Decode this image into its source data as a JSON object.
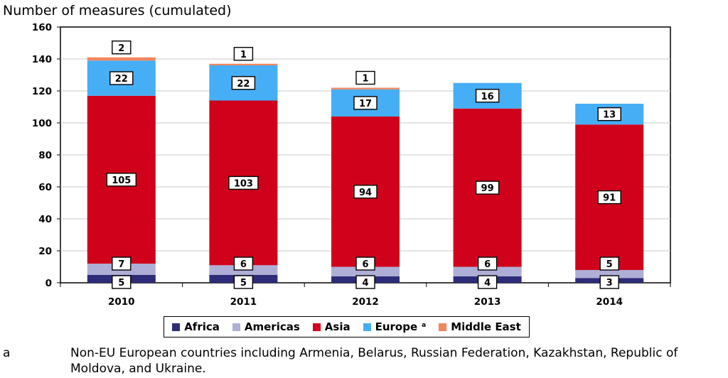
{
  "chart_data": {
    "type": "bar",
    "stacked": true,
    "ylabel": "Number of measures (cumulated)",
    "ylim": [
      0,
      160
    ],
    "yticks": [
      0,
      20,
      40,
      60,
      80,
      100,
      120,
      140,
      160
    ],
    "grid": true,
    "legend_position": "bottom",
    "categories": [
      "2010",
      "2011",
      "2012",
      "2013",
      "2014"
    ],
    "series": [
      {
        "name": "Africa",
        "color": "#2e2c78",
        "values": [
          5,
          5,
          4,
          4,
          3
        ]
      },
      {
        "name": "Americas",
        "color": "#aeaed6",
        "values": [
          7,
          6,
          6,
          6,
          5
        ]
      },
      {
        "name": "Asia",
        "color": "#d0021b",
        "values": [
          105,
          103,
          94,
          99,
          91
        ]
      },
      {
        "name": "Europe",
        "superscript": "a",
        "color": "#45aef5",
        "values": [
          22,
          22,
          17,
          16,
          13
        ]
      },
      {
        "name": "Middle East",
        "color": "#f2855c",
        "values": [
          2,
          1,
          1,
          0,
          0
        ]
      }
    ]
  },
  "footnote": {
    "mark": "a",
    "text": "Non-EU European countries including Armenia, Belarus, Russian Federation, Kazakhstan, Republic of Moldova, and Ukraine."
  }
}
